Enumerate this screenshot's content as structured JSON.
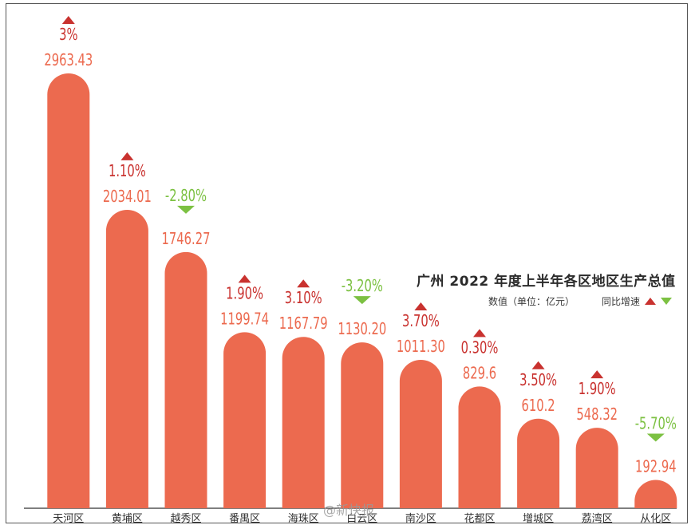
{
  "chart_data": {
    "type": "bar",
    "title": "广州 2022 年度上半年各区地区生产总值",
    "unit_label": "数值（单位：亿元）",
    "growth_label": "同比增速",
    "categories": [
      "天河区",
      "黄埔区",
      "越秀区",
      "番禺区",
      "海珠区",
      "白云区",
      "南沙区",
      "花都区",
      "增城区",
      "荔湾区",
      "从化区"
    ],
    "values": [
      2963.43,
      2034.01,
      1746.27,
      1199.74,
      1167.79,
      1130.2,
      1011.3,
      829.6,
      610.2,
      548.32,
      192.94
    ],
    "value_labels": [
      "2963.43",
      "2034.01",
      "1746.27",
      "1199.74",
      "1167.79",
      "1130.20",
      "1011.30",
      "829.6",
      "610.2",
      "548.32",
      "192.94"
    ],
    "growth": [
      "3%",
      "1.10%",
      "-2.80%",
      "1.90%",
      "3.10%",
      "-3.20%",
      "3.70%",
      "0.30%",
      "3.50%",
      "1.90%",
      "-5.70%"
    ],
    "growth_direction": [
      "up",
      "up",
      "down",
      "up",
      "up",
      "down",
      "up",
      "up",
      "up",
      "up",
      "down"
    ],
    "ylim": [
      0,
      3000
    ],
    "grid": false,
    "colors": {
      "bar": "#ec6a4f",
      "value_text": "#ec6a4f",
      "up": "#c9322f",
      "down": "#7cc142",
      "axis": "#333333"
    }
  },
  "watermark": "@新快报"
}
